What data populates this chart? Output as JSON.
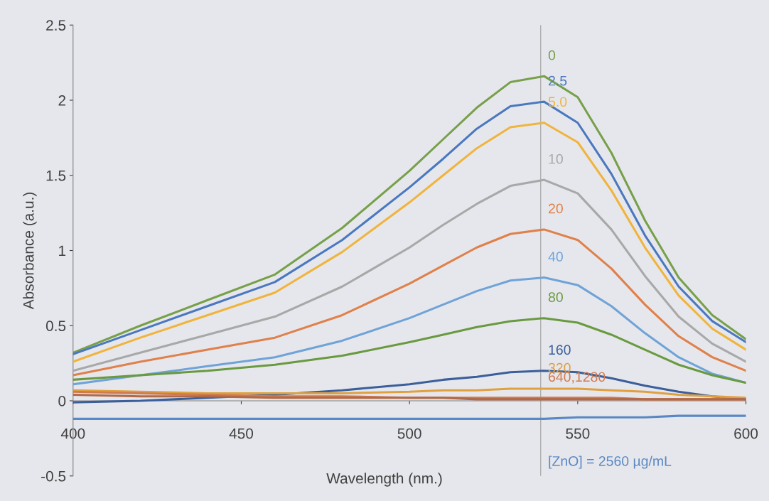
{
  "chart_data": {
    "type": "line",
    "xlabel": "Wavelength (nm.)",
    "ylabel": "Absorbance (a.u.)",
    "x": [
      400,
      420,
      440,
      460,
      480,
      500,
      510,
      520,
      530,
      540,
      550,
      560,
      570,
      580,
      590,
      600
    ],
    "xlim": [
      400,
      600
    ],
    "xticks": [
      400,
      450,
      500,
      550,
      600
    ],
    "ylim": [
      -0.5,
      2.5
    ],
    "yticks": [
      -0.5,
      0,
      0.5,
      1,
      1.5,
      2,
      2.5
    ],
    "grid": false,
    "legend": false,
    "marker": "none",
    "line_style": "solid",
    "ref_lines": [
      {
        "axis": "x",
        "value": 539,
        "color": "#a0a0a0"
      }
    ],
    "series": [
      {
        "name": "0",
        "color": "#77a04a",
        "values": [
          0.32,
          0.5,
          0.67,
          0.84,
          1.15,
          1.53,
          1.74,
          1.95,
          2.12,
          2.16,
          2.02,
          1.65,
          1.2,
          0.82,
          0.57,
          0.41
        ]
      },
      {
        "name": "2.5",
        "color": "#4a78c0",
        "values": [
          0.31,
          0.47,
          0.63,
          0.79,
          1.07,
          1.42,
          1.61,
          1.81,
          1.96,
          1.99,
          1.85,
          1.51,
          1.1,
          0.76,
          0.53,
          0.39
        ]
      },
      {
        "name": "5.0",
        "color": "#f0b43c",
        "values": [
          0.26,
          0.42,
          0.57,
          0.72,
          0.99,
          1.32,
          1.5,
          1.68,
          1.82,
          1.85,
          1.72,
          1.4,
          1.02,
          0.7,
          0.48,
          0.34
        ]
      },
      {
        "name": "10",
        "color": "#a8a8a8",
        "values": [
          0.2,
          0.32,
          0.44,
          0.56,
          0.76,
          1.02,
          1.17,
          1.31,
          1.43,
          1.47,
          1.38,
          1.14,
          0.83,
          0.56,
          0.38,
          0.26
        ]
      },
      {
        "name": "20",
        "color": "#e0804a",
        "values": [
          0.17,
          0.26,
          0.34,
          0.42,
          0.57,
          0.78,
          0.9,
          1.02,
          1.11,
          1.14,
          1.07,
          0.88,
          0.64,
          0.43,
          0.29,
          0.2
        ]
      },
      {
        "name": "40",
        "color": "#6fa3d8",
        "values": [
          0.11,
          0.17,
          0.23,
          0.29,
          0.4,
          0.55,
          0.64,
          0.73,
          0.8,
          0.82,
          0.77,
          0.63,
          0.45,
          0.29,
          0.18,
          0.12
        ]
      },
      {
        "name": "80",
        "color": "#6a9a40",
        "values": [
          0.14,
          0.17,
          0.2,
          0.24,
          0.3,
          0.39,
          0.44,
          0.49,
          0.53,
          0.55,
          0.52,
          0.44,
          0.34,
          0.24,
          0.17,
          0.12
        ]
      },
      {
        "name": "160",
        "color": "#3a5f9a",
        "values": [
          -0.01,
          0.0,
          0.02,
          0.04,
          0.07,
          0.11,
          0.14,
          0.16,
          0.19,
          0.2,
          0.19,
          0.15,
          0.1,
          0.06,
          0.03,
          0.01
        ]
      },
      {
        "name": "320",
        "color": "#e0a040",
        "values": [
          0.07,
          0.06,
          0.05,
          0.05,
          0.05,
          0.06,
          0.07,
          0.07,
          0.08,
          0.08,
          0.08,
          0.07,
          0.06,
          0.04,
          0.03,
          0.02
        ]
      },
      {
        "name": "640,1280",
        "color": "#d07a50",
        "values": [
          0.06,
          0.05,
          0.04,
          0.03,
          0.03,
          0.02,
          0.02,
          0.02,
          0.02,
          0.02,
          0.02,
          0.02,
          0.01,
          0.01,
          0.01,
          0.01
        ]
      },
      {
        "color": "#b06a48",
        "values": [
          0.04,
          0.03,
          0.03,
          0.02,
          0.02,
          0.02,
          0.02,
          0.01,
          0.01,
          0.01,
          0.01,
          0.01,
          0.01,
          0.01,
          0.01,
          0.01
        ]
      },
      {
        "name": "[ZnO] = 2560 µg/mL",
        "color": "#5a88c4",
        "values": [
          -0.12,
          -0.12,
          -0.12,
          -0.12,
          -0.12,
          -0.12,
          -0.12,
          -0.12,
          -0.12,
          -0.12,
          -0.11,
          -0.11,
          -0.11,
          -0.1,
          -0.1,
          -0.1
        ]
      }
    ]
  }
}
